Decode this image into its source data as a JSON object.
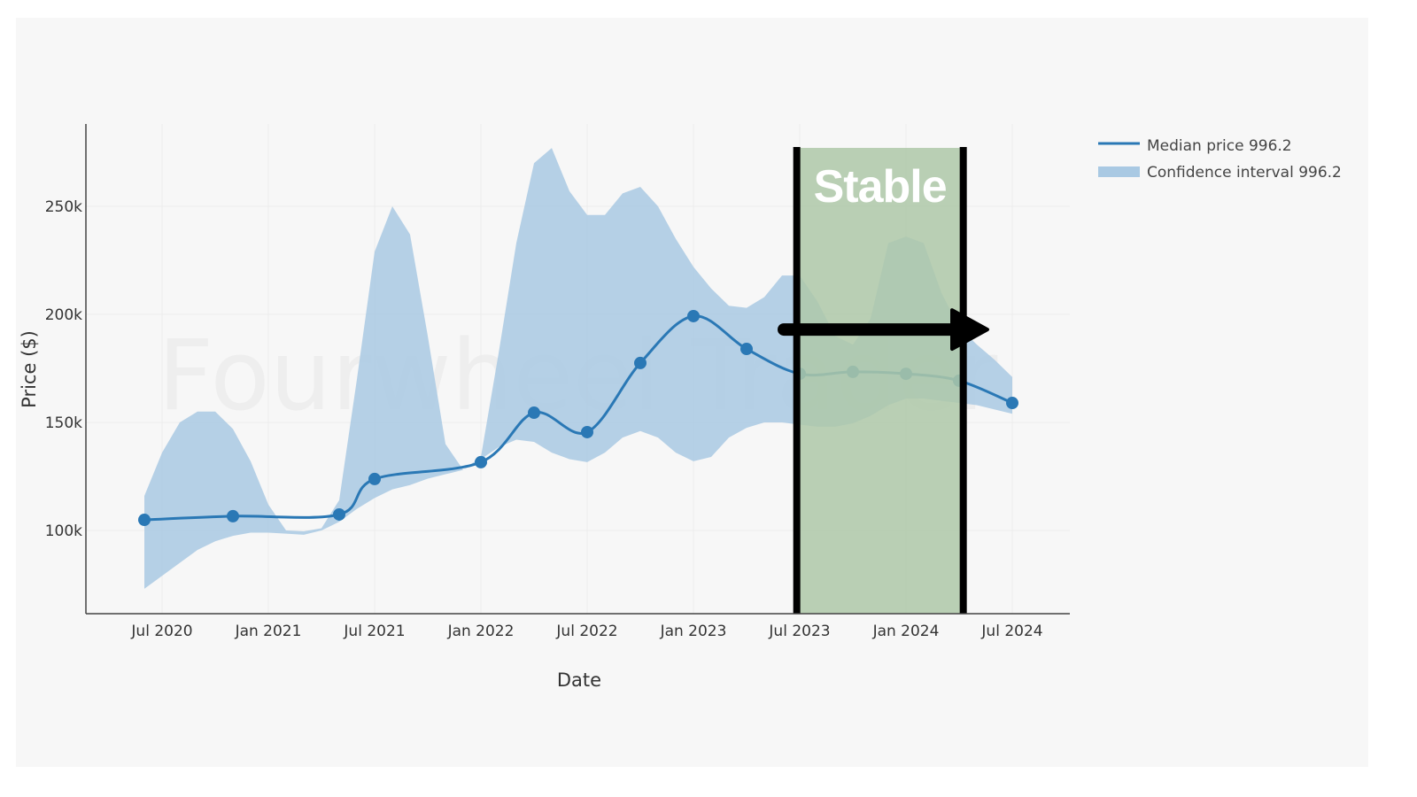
{
  "chart_data": {
    "type": "line",
    "title": "",
    "xlabel": "Date",
    "ylabel": "Price ($)",
    "watermark": "Fourwheel Trader",
    "x_tick_labels": [
      "Jul 2020",
      "Jan 2021",
      "Jul 2021",
      "Jan 2022",
      "Jul 2022",
      "Jan 2023",
      "Jul 2023",
      "Jan 2024",
      "Jul 2024"
    ],
    "x_ticks": [
      "2020-07",
      "2021-01",
      "2021-07",
      "2022-01",
      "2022-07",
      "2023-01",
      "2023-07",
      "2024-01",
      "2024-07"
    ],
    "y_tick_labels": [
      "100k",
      "150k",
      "200k",
      "250k"
    ],
    "y_ticks": [
      100000,
      150000,
      200000,
      250000
    ],
    "xlim": [
      "2020-03-15",
      "2024-10-08"
    ],
    "ylim": [
      61500,
      288000
    ],
    "grid": true,
    "legend": {
      "placement": "top-right",
      "entries": [
        "Median price 996.2",
        "Confidence interval 996.2"
      ]
    },
    "series": [
      {
        "name": "Median price 996.2",
        "type": "line+markers",
        "color": "#2a78b5",
        "x": [
          "2020-06",
          "2020-11",
          "2021-05",
          "2021-07",
          "2022-01",
          "2022-04",
          "2022-07",
          "2022-10",
          "2023-01",
          "2023-04",
          "2023-07",
          "2023-10",
          "2024-01",
          "2024-04",
          "2024-07"
        ],
        "values": [
          104900,
          106600,
          107400,
          123800,
          131600,
          154500,
          145500,
          177500,
          199200,
          184000,
          172500,
          173400,
          172500,
          169300,
          159000
        ]
      },
      {
        "name": "Confidence interval 996.2",
        "type": "band",
        "color": "#a9c9e3",
        "start": "2020-06",
        "upper": [
          116000,
          136000,
          150000,
          155000,
          155000,
          147000,
          132000,
          112000,
          100000,
          99600,
          101000,
          114000,
          170000,
          229000,
          250000,
          237000,
          190000,
          140000,
          128000,
          134000,
          182000,
          233000,
          270000,
          277000,
          257000,
          246000,
          246000,
          256000,
          259000,
          250000,
          235000,
          222000,
          212000,
          204000,
          203000,
          208000,
          218000,
          218000,
          206000,
          190000,
          186000,
          198000,
          233000,
          236000,
          233000,
          210000,
          194000,
          186000,
          179000,
          171000
        ],
        "lower": [
          73000,
          79000,
          85000,
          91000,
          95000,
          97500,
          99000,
          99000,
          98500,
          98000,
          100000,
          104000,
          110000,
          115000,
          119000,
          121000,
          124000,
          126000,
          128000,
          133000,
          138500,
          142000,
          141000,
          136000,
          133000,
          131600,
          136000,
          143000,
          146000,
          143000,
          136000,
          132000,
          134000,
          143000,
          147500,
          150000,
          150000,
          149000,
          148000,
          148000,
          149600,
          153000,
          158000,
          161000,
          161000,
          160000,
          159000,
          158000,
          156000,
          154000
        ]
      }
    ],
    "annotations": {
      "region": {
        "label": "Stable",
        "start": "2023-06-26",
        "end": "2024-04-08",
        "color": "#aec8a8"
      },
      "arrow": {
        "start": "2023-06-04",
        "end": "2024-05-19",
        "value": 193000,
        "color": "#000000"
      }
    }
  }
}
